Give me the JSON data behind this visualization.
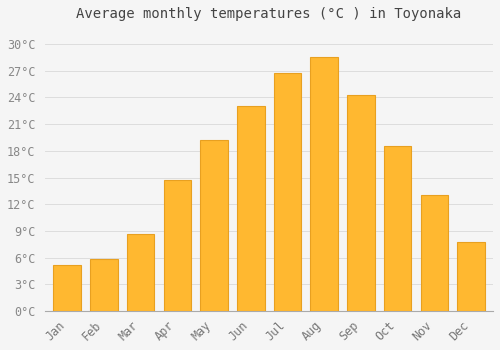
{
  "title": "Average monthly temperatures (°C ) in Toyonaka",
  "months": [
    "Jan",
    "Feb",
    "Mar",
    "Apr",
    "May",
    "Jun",
    "Jul",
    "Aug",
    "Sep",
    "Oct",
    "Nov",
    "Dec"
  ],
  "temperatures": [
    5.2,
    5.8,
    8.7,
    14.7,
    19.2,
    23.0,
    26.8,
    28.5,
    24.3,
    18.5,
    13.0,
    7.8
  ],
  "bar_color": "#FFB830",
  "bar_edge_color": "#E8A020",
  "background_color": "#F5F5F5",
  "plot_bg_color": "#F5F5F5",
  "grid_color": "#DDDDDD",
  "text_color": "#777777",
  "ytick_label_color": "#888888",
  "yticks": [
    0,
    3,
    6,
    9,
    12,
    15,
    18,
    21,
    24,
    27,
    30
  ],
  "ylim": [
    0,
    32
  ],
  "title_fontsize": 10,
  "tick_fontsize": 8.5,
  "font_family": "monospace",
  "bar_width": 0.75
}
